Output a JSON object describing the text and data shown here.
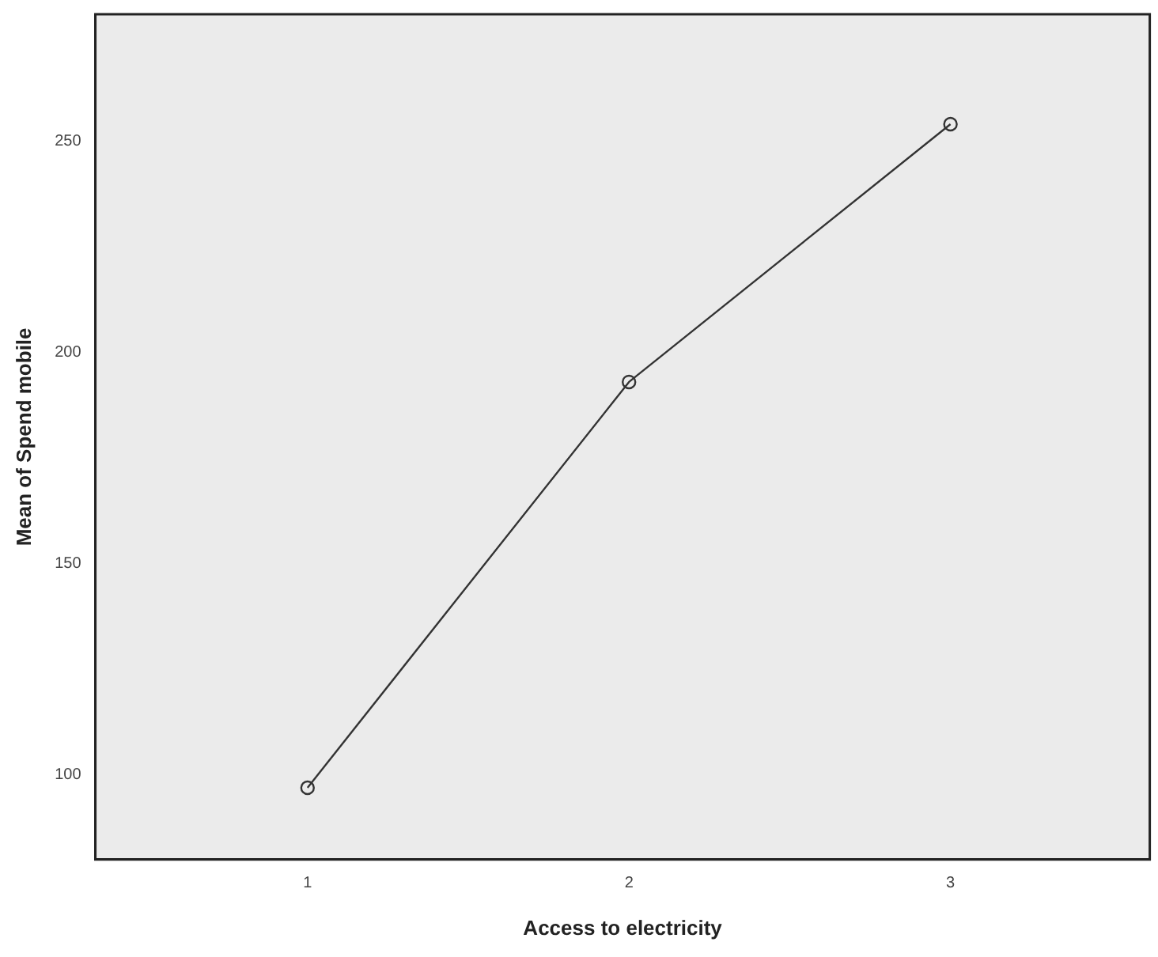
{
  "chart_data": {
    "type": "line",
    "xlabel": "Access to electricity",
    "ylabel": "Mean of Spend mobile",
    "x": [
      1,
      2,
      3
    ],
    "series": [
      {
        "color": "#333333",
        "values": [
          97,
          193,
          254
        ]
      }
    ],
    "xlim": [
      0.34,
      3.62
    ],
    "xticks": [
      1,
      2,
      3
    ],
    "ylim": [
      80,
      280
    ],
    "yticks": [
      100,
      150,
      200,
      250
    ],
    "grid": false,
    "legend": false,
    "marker": "circle",
    "line_style": "solid"
  }
}
